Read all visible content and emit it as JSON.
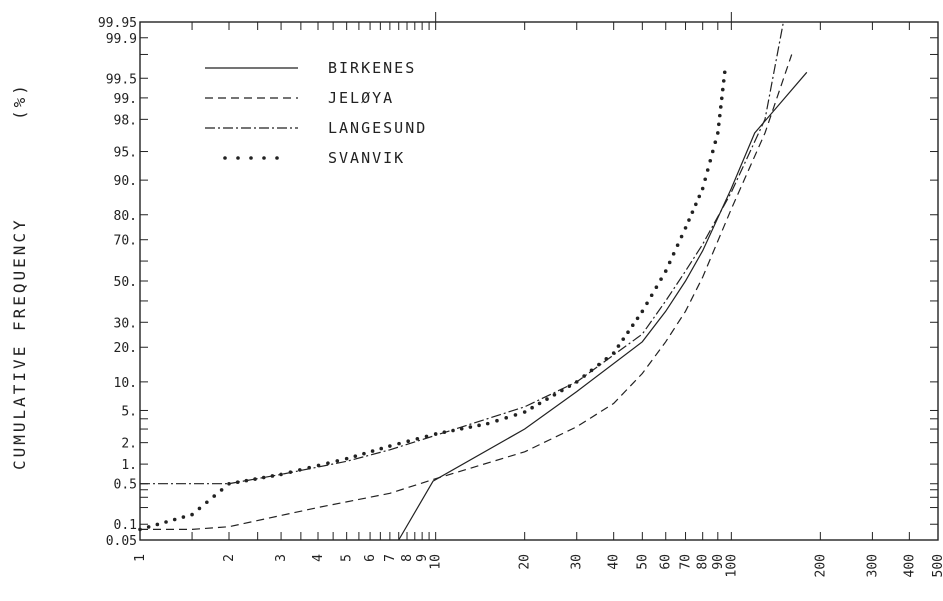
{
  "chart_data": {
    "type": "line",
    "title": "",
    "xlabel": "",
    "ylabel": "CUMULATIVE FREQUENCY",
    "ylabel_unit": "(%)",
    "x_scale": "log",
    "y_scale": "probability",
    "xlim": [
      1,
      500
    ],
    "ylim": [
      0.05,
      99.95
    ],
    "grid": false,
    "legend_position": "top-left",
    "x_tick_labels": [
      {
        "v": 1,
        "t": "1"
      },
      {
        "v": 2,
        "t": "2"
      },
      {
        "v": 3,
        "t": "3"
      },
      {
        "v": 4,
        "t": "4"
      },
      {
        "v": 5,
        "t": "5"
      },
      {
        "v": 6,
        "t": "6"
      },
      {
        "v": 7,
        "t": "7"
      },
      {
        "v": 8,
        "t": "8"
      },
      {
        "v": 9,
        "t": "9"
      },
      {
        "v": 10,
        "t": "10"
      },
      {
        "v": 20,
        "t": "20"
      },
      {
        "v": 30,
        "t": "30"
      },
      {
        "v": 40,
        "t": "40"
      },
      {
        "v": 50,
        "t": "50"
      },
      {
        "v": 60,
        "t": "60"
      },
      {
        "v": 70,
        "t": "70"
      },
      {
        "v": 80,
        "t": "80"
      },
      {
        "v": 90,
        "t": "90"
      },
      {
        "v": 100,
        "t": "100"
      },
      {
        "v": 200,
        "t": "200"
      },
      {
        "v": 300,
        "t": "300"
      },
      {
        "v": 400,
        "t": "400"
      },
      {
        "v": 500,
        "t": "500"
      }
    ],
    "y_tick_labels": [
      {
        "v": 0.05,
        "t": "0.05"
      },
      {
        "v": 0.1,
        "t": "0.1"
      },
      {
        "v": 0.5,
        "t": "0.5"
      },
      {
        "v": 1,
        "t": "1."
      },
      {
        "v": 2,
        "t": "2."
      },
      {
        "v": 5,
        "t": "5."
      },
      {
        "v": 10,
        "t": "10."
      },
      {
        "v": 20,
        "t": "20."
      },
      {
        "v": 30,
        "t": "30."
      },
      {
        "v": 50,
        "t": "50."
      },
      {
        "v": 70,
        "t": "70."
      },
      {
        "v": 80,
        "t": "80."
      },
      {
        "v": 90,
        "t": "90."
      },
      {
        "v": 95,
        "t": "95."
      },
      {
        "v": 98,
        "t": "98."
      },
      {
        "v": 99,
        "t": "99."
      },
      {
        "v": 99.5,
        "t": "99.5"
      },
      {
        "v": 99.9,
        "t": "99.9"
      },
      {
        "v": 99.95,
        "t": "99.95"
      }
    ],
    "series": [
      {
        "name": "BIRKENES",
        "style": "solid",
        "points": [
          [
            7.5,
            0.05
          ],
          [
            9.8,
            0.55
          ],
          [
            20,
            3
          ],
          [
            30,
            8
          ],
          [
            50,
            22
          ],
          [
            60,
            35
          ],
          [
            70,
            50
          ],
          [
            80,
            65
          ],
          [
            100,
            88
          ],
          [
            120,
            97
          ],
          [
            180,
            99.6
          ]
        ]
      },
      {
        "name": "JELØYA",
        "style": "dashed",
        "points": [
          [
            1,
            0.08
          ],
          [
            1.5,
            0.08
          ],
          [
            2,
            0.09
          ],
          [
            4,
            0.2
          ],
          [
            7,
            0.35
          ],
          [
            10,
            0.6
          ],
          [
            20,
            1.5
          ],
          [
            30,
            3.2
          ],
          [
            40,
            6
          ],
          [
            50,
            12
          ],
          [
            60,
            22
          ],
          [
            70,
            35
          ],
          [
            80,
            52
          ],
          [
            100,
            82
          ],
          [
            130,
            97
          ],
          [
            160,
            99.8
          ]
        ]
      },
      {
        "name": "LANGESUND",
        "style": "dashdot",
        "points": [
          [
            1,
            0.5
          ],
          [
            2,
            0.5
          ],
          [
            3,
            0.7
          ],
          [
            5,
            1.1
          ],
          [
            7,
            1.6
          ],
          [
            10,
            2.5
          ],
          [
            20,
            5.5
          ],
          [
            30,
            10
          ],
          [
            50,
            25
          ],
          [
            60,
            40
          ],
          [
            70,
            55
          ],
          [
            80,
            68
          ],
          [
            100,
            87
          ],
          [
            130,
            98
          ],
          [
            150,
            99.95
          ]
        ]
      },
      {
        "name": "SVANVIK",
        "style": "dotted",
        "points": [
          [
            1,
            0.08
          ],
          [
            1.5,
            0.15
          ],
          [
            2,
            0.5
          ],
          [
            3,
            0.7
          ],
          [
            5,
            1.2
          ],
          [
            7,
            1.8
          ],
          [
            10,
            2.6
          ],
          [
            15,
            3.5
          ],
          [
            20,
            4.8
          ],
          [
            30,
            10
          ],
          [
            40,
            18
          ],
          [
            50,
            35
          ],
          [
            60,
            55
          ],
          [
            70,
            75
          ],
          [
            80,
            88
          ],
          [
            90,
            97
          ],
          [
            95,
            99.6
          ]
        ]
      }
    ]
  }
}
